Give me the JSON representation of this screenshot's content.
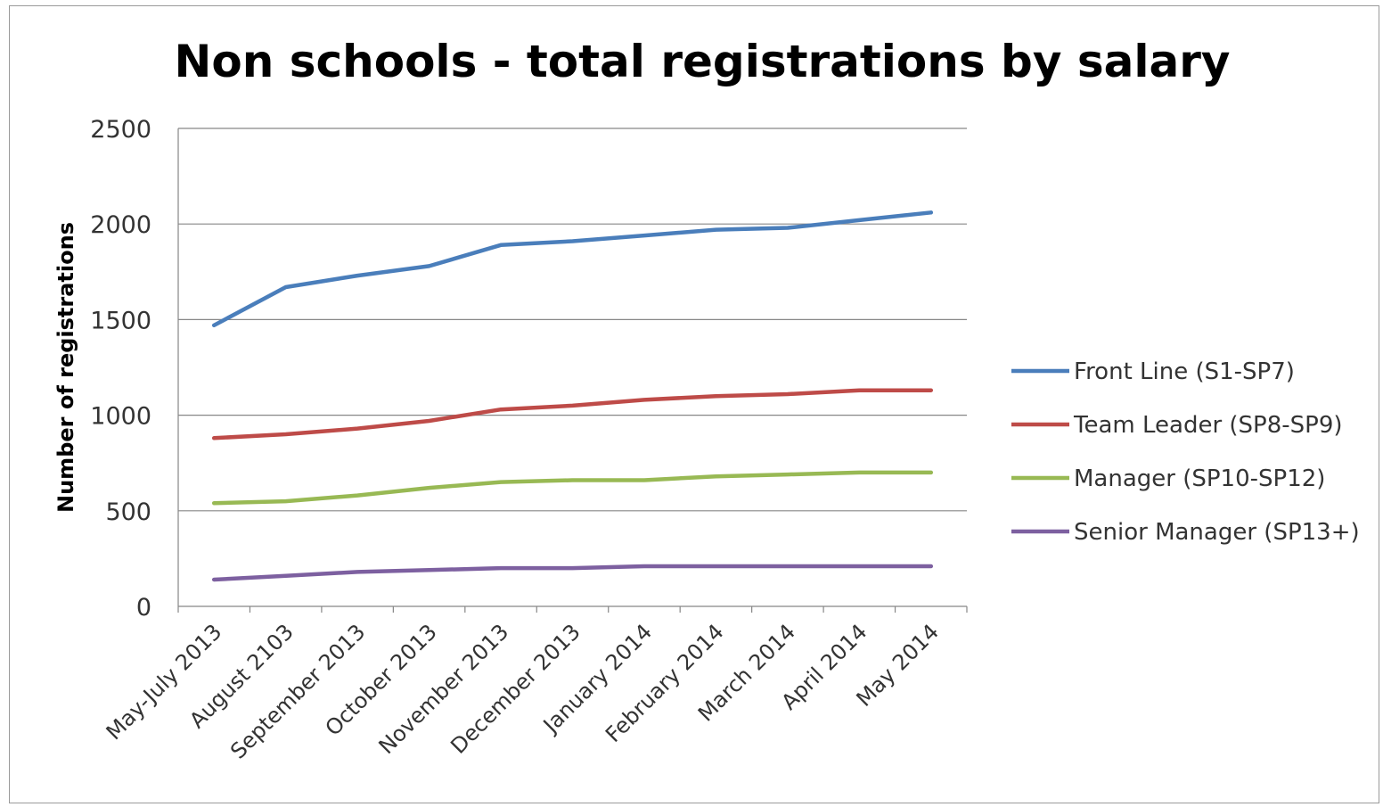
{
  "chart_data": {
    "type": "line",
    "title": "Non schools - total registrations by salary",
    "xlabel": "",
    "ylabel": "Number of registrations",
    "ylim": [
      0,
      2500
    ],
    "yticks": [
      "0",
      "500",
      "1000",
      "1500",
      "2000",
      "2500"
    ],
    "grid": true,
    "legend_position": "right",
    "categories": [
      "May-July 2013",
      "August 2103",
      "September 2013",
      "October 2013",
      "November 2013",
      "December 2013",
      "January 2014",
      "February 2014",
      "March 2014",
      "April 2014",
      "May 2014"
    ],
    "series": [
      {
        "name": "Front Line (S1-SP7)",
        "color": "#4a7ebb",
        "values": [
          1470,
          1670,
          1730,
          1780,
          1890,
          1910,
          1940,
          1970,
          1980,
          2020,
          2060
        ]
      },
      {
        "name": "Team Leader (SP8-SP9)",
        "color": "#be4b48",
        "values": [
          880,
          900,
          930,
          970,
          1030,
          1050,
          1080,
          1100,
          1110,
          1130,
          1130
        ]
      },
      {
        "name": "Manager (SP10-SP12)",
        "color": "#98b954",
        "values": [
          540,
          550,
          580,
          620,
          650,
          660,
          660,
          680,
          690,
          700,
          700
        ]
      },
      {
        "name": "Senior Manager (SP13+)",
        "color": "#7d60a0",
        "values": [
          140,
          160,
          180,
          190,
          200,
          200,
          210,
          210,
          210,
          210,
          210
        ]
      }
    ]
  }
}
